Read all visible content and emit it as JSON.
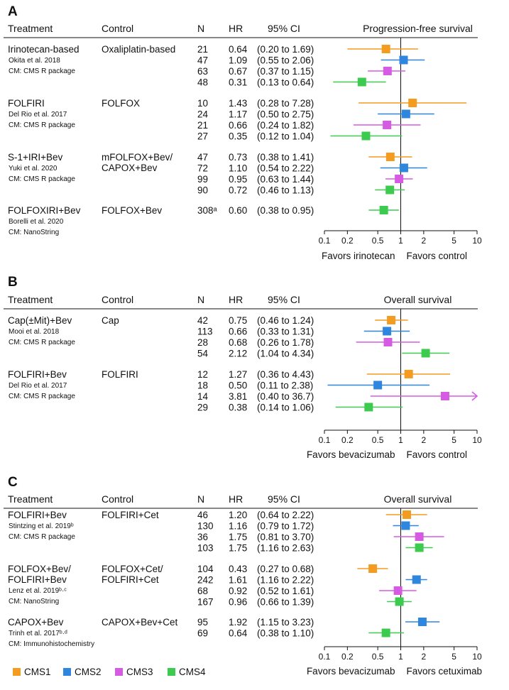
{
  "legend": [
    {
      "name": "CMS1",
      "color": "#F39C1F"
    },
    {
      "name": "CMS2",
      "color": "#2F86DE"
    },
    {
      "name": "CMS3",
      "color": "#D55BE3"
    },
    {
      "name": "CMS4",
      "color": "#3DCB4F"
    }
  ],
  "chart_data": [
    {
      "type": "forest",
      "panel": "A",
      "headers": {
        "treatment": "Treatment",
        "control": "Control",
        "n": "N",
        "hr": "HR",
        "ci": "95% CI"
      },
      "title": "Progression-free survival",
      "xscale": "log",
      "xlim": [
        0.1,
        10
      ],
      "xticks": [
        "0.1",
        "0.2",
        "0.5",
        "1",
        "2",
        "5",
        "10"
      ],
      "favors_left": "Favors irinotecan",
      "favors_right": "Favors control",
      "groups": [
        {
          "treatment": "Irinotecan-based",
          "control": [
            "Oxaliplatin-based"
          ],
          "study": "Okita et al. 2018",
          "cm": "CM: CMS R package",
          "rows": [
            {
              "cms": "CMS1",
              "n": "21",
              "hr": 0.64,
              "hr_text": "0.64",
              "lo": 0.2,
              "hi": 1.69,
              "ci": "(0.20 to 1.69)"
            },
            {
              "cms": "CMS2",
              "n": "47",
              "hr": 1.09,
              "hr_text": "1.09",
              "lo": 0.55,
              "hi": 2.06,
              "ci": "(0.55 to 2.06)"
            },
            {
              "cms": "CMS3",
              "n": "63",
              "hr": 0.67,
              "hr_text": "0.67",
              "lo": 0.37,
              "hi": 1.15,
              "ci": "(0.37 to 1.15)"
            },
            {
              "cms": "CMS4",
              "n": "48",
              "hr": 0.31,
              "hr_text": "0.31",
              "lo": 0.13,
              "hi": 0.64,
              "ci": "(0.13 to 0.64)"
            }
          ]
        },
        {
          "treatment": "FOLFIRI",
          "control": [
            "FOLFOX"
          ],
          "study": "Del Rio et al. 2017",
          "cm": "CM: CMS R package",
          "rows": [
            {
              "cms": "CMS1",
              "n": "10",
              "hr": 1.43,
              "hr_text": "1.43",
              "lo": 0.28,
              "hi": 7.28,
              "ci": "(0.28 to 7.28)"
            },
            {
              "cms": "CMS2",
              "n": "24",
              "hr": 1.17,
              "hr_text": "1.17",
              "lo": 0.5,
              "hi": 2.75,
              "ci": "(0.50 to 2.75)"
            },
            {
              "cms": "CMS3",
              "n": "21",
              "hr": 0.66,
              "hr_text": "0.66",
              "lo": 0.24,
              "hi": 1.82,
              "ci": "(0.24 to 1.82)"
            },
            {
              "cms": "CMS4",
              "n": "27",
              "hr": 0.35,
              "hr_text": "0.35",
              "lo": 0.12,
              "hi": 1.04,
              "ci": "(0.12 to 1.04)"
            }
          ]
        },
        {
          "treatment": "S-1+IRI+Bev",
          "control": [
            "mFOLFOX+Bev/",
            "CAPOX+Bev"
          ],
          "study": "Yuki et al. 2020",
          "cm": "CM: CMS R package",
          "rows": [
            {
              "cms": "CMS1",
              "n": "47",
              "hr": 0.73,
              "hr_text": "0.73",
              "lo": 0.38,
              "hi": 1.41,
              "ci": "(0.38 to 1.41)"
            },
            {
              "cms": "CMS2",
              "n": "72",
              "hr": 1.1,
              "hr_text": "1.10",
              "lo": 0.54,
              "hi": 2.22,
              "ci": "(0.54 to 2.22)"
            },
            {
              "cms": "CMS3",
              "n": "99",
              "hr": 0.95,
              "hr_text": "0.95",
              "lo": 0.63,
              "hi": 1.44,
              "ci": "(0.63 to 1.44)"
            },
            {
              "cms": "CMS4",
              "n": "90",
              "hr": 0.72,
              "hr_text": "0.72",
              "lo": 0.46,
              "hi": 1.13,
              "ci": "(0.46 to 1.13)"
            }
          ]
        },
        {
          "treatment": "FOLFOXIRI+Bev",
          "control": [
            "FOLFOX+Bev"
          ],
          "study": "Borelli et al. 2020",
          "cm": "CM: NanoString",
          "rows": [
            {
              "cms": "CMS4",
              "n": "308ᵃ",
              "hr": 0.6,
              "hr_text": "0.60",
              "lo": 0.38,
              "hi": 0.95,
              "ci": "(0.38 to 0.95)"
            }
          ]
        }
      ]
    },
    {
      "type": "forest",
      "panel": "B",
      "headers": {
        "treatment": "Treatment",
        "control": "Control",
        "n": "N",
        "hr": "HR",
        "ci": "95% CI"
      },
      "title": "Overall survival",
      "xscale": "log",
      "xlim": [
        0.1,
        10
      ],
      "xticks": [
        "0.1",
        "0.2",
        "0.5",
        "1",
        "2",
        "5",
        "10"
      ],
      "favors_left": "Favors bevacizumab",
      "favors_right": "Favors control",
      "groups": [
        {
          "treatment": "Cap(±Mit)+Bev",
          "control": [
            "Cap"
          ],
          "study": "Mooi et al. 2018",
          "cm": "CM: CMS R package",
          "rows": [
            {
              "cms": "CMS1",
              "n": "42",
              "hr": 0.75,
              "hr_text": "0.75",
              "lo": 0.46,
              "hi": 1.24,
              "ci": "(0.46 to 1.24)"
            },
            {
              "cms": "CMS2",
              "n": "113",
              "hr": 0.66,
              "hr_text": "0.66",
              "lo": 0.33,
              "hi": 1.31,
              "ci": "(0.33 to 1.31)"
            },
            {
              "cms": "CMS3",
              "n": "28",
              "hr": 0.68,
              "hr_text": "0.68",
              "lo": 0.26,
              "hi": 1.78,
              "ci": "(0.26 to 1.78)"
            },
            {
              "cms": "CMS4",
              "n": "54",
              "hr": 2.12,
              "hr_text": "2.12",
              "lo": 1.04,
              "hi": 4.34,
              "ci": "(1.04 to 4.34)"
            }
          ]
        },
        {
          "treatment": "FOLFIRI+Bev",
          "control": [
            "FOLFIRI"
          ],
          "study": "Del Rio et al. 2017",
          "cm": "CM: CMS R package",
          "rows": [
            {
              "cms": "CMS1",
              "n": "12",
              "hr": 1.27,
              "hr_text": "1.27",
              "lo": 0.36,
              "hi": 4.43,
              "ci": "(0.36 to 4.43)"
            },
            {
              "cms": "CMS2",
              "n": "18",
              "hr": 0.5,
              "hr_text": "0.50",
              "lo": 0.11,
              "hi": 2.38,
              "ci": "(0.11 to 2.38)"
            },
            {
              "cms": "CMS3",
              "n": "14",
              "hr": 3.81,
              "hr_text": "3.81",
              "lo": 0.4,
              "hi": 36.7,
              "ci": "(0.40 to 36.7)"
            },
            {
              "cms": "CMS4",
              "n": "29",
              "hr": 0.38,
              "hr_text": "0.38",
              "lo": 0.14,
              "hi": 1.06,
              "ci": "(0.14 to 1.06)"
            }
          ]
        }
      ]
    },
    {
      "type": "forest",
      "panel": "C",
      "headers": {
        "treatment": "Treatment",
        "control": "Control",
        "n": "N",
        "hr": "HR",
        "ci": "95% CI"
      },
      "title": "Overall survival",
      "xscale": "log",
      "xlim": [
        0.1,
        10
      ],
      "xticks": [
        "0.1",
        "0.2",
        "0.5",
        "1",
        "2",
        "5",
        "10"
      ],
      "favors_left": "Favors bevacizumab",
      "favors_right": "Favors cetuximab",
      "groups": [
        {
          "treatment": "FOLFIRI+Bev",
          "control": [
            "FOLFIRI+Cet"
          ],
          "study": "Stintzing et al. 2019ᵇ",
          "cm": "CM: CMS R package",
          "rows": [
            {
              "cms": "CMS1",
              "n": "46",
              "hr": 1.2,
              "hr_text": "1.20",
              "lo": 0.64,
              "hi": 2.22,
              "ci": "(0.64 to 2.22)"
            },
            {
              "cms": "CMS2",
              "n": "130",
              "hr": 1.16,
              "hr_text": "1.16",
              "lo": 0.79,
              "hi": 1.72,
              "ci": "(0.79 to 1.72)"
            },
            {
              "cms": "CMS3",
              "n": "36",
              "hr": 1.75,
              "hr_text": "1.75",
              "lo": 0.81,
              "hi": 3.7,
              "ci": "(0.81 to 3.70)"
            },
            {
              "cms": "CMS4",
              "n": "103",
              "hr": 1.75,
              "hr_text": "1.75",
              "lo": 1.16,
              "hi": 2.63,
              "ci": "(1.16 to 2.63)"
            }
          ]
        },
        {
          "treatment": "FOLFOX+Bev/",
          "treatment2": "FOLFIRI+Bev",
          "control": [
            "FOLFOX+Cet/",
            "FOLFIRI+Cet"
          ],
          "study": "Lenz et al. 2019ᵇ·ᶜ",
          "cm": "CM: NanoString",
          "rows": [
            {
              "cms": "CMS1",
              "n": "104",
              "hr": 0.43,
              "hr_text": "0.43",
              "lo": 0.27,
              "hi": 0.68,
              "ci": "(0.27 to 0.68)"
            },
            {
              "cms": "CMS2",
              "n": "242",
              "hr": 1.61,
              "hr_text": "1.61",
              "lo": 1.16,
              "hi": 2.22,
              "ci": "(1.16 to 2.22)"
            },
            {
              "cms": "CMS3",
              "n": "68",
              "hr": 0.92,
              "hr_text": "0.92",
              "lo": 0.52,
              "hi": 1.61,
              "ci": "(0.52 to 1.61)"
            },
            {
              "cms": "CMS4",
              "n": "167",
              "hr": 0.96,
              "hr_text": "0.96",
              "lo": 0.66,
              "hi": 1.39,
              "ci": "(0.66 to 1.39)"
            }
          ]
        },
        {
          "treatment": "CAPOX+Bev",
          "control": [
            "CAPOX+Bev+Cet"
          ],
          "study": "Trinh et al. 2017ᵇ·ᵈ",
          "cm": "CM: Immunohistochemistry",
          "rows": [
            {
              "cms": "CMS2",
              "n": "95",
              "hr": 1.92,
              "hr_text": "1.92",
              "lo": 1.15,
              "hi": 3.23,
              "ci": "(1.15 to 3.23)"
            },
            {
              "cms": "CMS4",
              "n": "69",
              "hr": 0.64,
              "hr_text": "0.64",
              "lo": 0.38,
              "hi": 1.1,
              "ci": "(0.38 to 1.10)"
            }
          ]
        }
      ]
    }
  ]
}
